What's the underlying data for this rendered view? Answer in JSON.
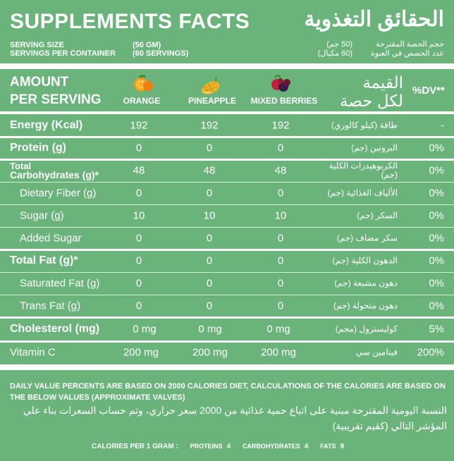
{
  "header": {
    "title_en": "SUPPLEMENTS FACTS",
    "title_ar": "الحقائق التغذوية",
    "serving_size_label": "SERVING SIZE",
    "serving_size_value": "(50 GM)",
    "servings_label": "SERVINGS PER CONTAINER",
    "servings_value": "(60 SERVINGS)",
    "serving_size_ar": "حجم الحصة المقترحة",
    "serving_size_value_ar": "(50 جم)",
    "servings_ar": "عدد الحصص في العبوة",
    "servings_value_ar": "(60 مكيال)"
  },
  "table_header": {
    "amount_line1": "AMOUNT",
    "amount_line2": "PER SERVING",
    "columns": [
      "ORANGE",
      "PINEAPPLE",
      "MIXED BERRIES"
    ],
    "ar_line1": "القيمة",
    "ar_line2": "لكل حصة",
    "dv": "%DV**"
  },
  "rows": [
    {
      "en": "Energy (Kcal)",
      "v": [
        "192",
        "192",
        "192"
      ],
      "ar": "طاقة (كيلو كالوري)",
      "dv": "-"
    },
    {
      "en": "Protein (g)",
      "v": [
        "0",
        "0",
        "0"
      ],
      "ar": "البروتين (جم)",
      "dv": "0%"
    },
    {
      "en1": "Total",
      "en2": "Carbohydrates (g)*",
      "v": [
        "48",
        "48",
        "48"
      ],
      "ar": "الكربوهيدرات الكلية (جم)",
      "dv": "0%"
    },
    {
      "en": "Dietary Fiber (g)",
      "v": [
        "0",
        "0",
        "0"
      ],
      "ar": "الألياف الغذائية (جم)",
      "dv": "0%"
    },
    {
      "en": "Sugar (g)",
      "v": [
        "10",
        "10",
        "10"
      ],
      "ar": "السكر (جم)",
      "dv": "0%"
    },
    {
      "en": "Added Sugar",
      "v": [
        "0",
        "0",
        "0"
      ],
      "ar": "سكر مضاف (جم)",
      "dv": "0%"
    },
    {
      "en": "Total Fat (g)*",
      "v": [
        "0",
        "0",
        "0"
      ],
      "ar": "الدهون الكلية (جم)",
      "dv": "0%"
    },
    {
      "en": "Saturated Fat (g)",
      "v": [
        "0",
        "0",
        "0"
      ],
      "ar": "دهون مشبعة (جم)",
      "dv": "0%"
    },
    {
      "en": "Trans Fat (g)",
      "v": [
        "0",
        "0",
        "0"
      ],
      "ar": "دهون متحولة (جم)",
      "dv": "0%"
    },
    {
      "en": "Cholesterol (mg)",
      "v": [
        "0 mg",
        "0 mg",
        "0 mg"
      ],
      "ar": "كوليسترول (مجم)",
      "dv": "5%"
    },
    {
      "en": "Vitamin C",
      "v": [
        "200 mg",
        "200 mg",
        "200 mg"
      ],
      "ar": "فيتامين سي",
      "dv": "200%"
    }
  ],
  "notes": {
    "en": "DAILY VALUE PERCENTS ARE BASED ON 2000 CALORIES DIET, CALCULATIONS OF THE CALORIES ARE BASED  ON THE BELOW VALUES (APPROXIMATE VALVES)",
    "ar": "النسبة اليومية المقترحة مبنية على اتباع حمية غذائية من 2000 سعر حراري، وتم حساب السعرات بناء علي المؤشر التالي (كقيم تقريبية)"
  },
  "footer": {
    "label": "CALORIES PER 1 GRAM :",
    "proteins_label": "PROTEINS",
    "proteins_value": "4",
    "carbs_label": "CARBOHYDRATES",
    "carbs_value": "4",
    "fats_label": "FATS",
    "fats_value": "9"
  },
  "colors": {
    "background": "#6ab37b",
    "text": "#ffffff"
  },
  "icons": [
    "orange-slices-icon",
    "pineapple-icon",
    "mixed-berries-icon"
  ]
}
